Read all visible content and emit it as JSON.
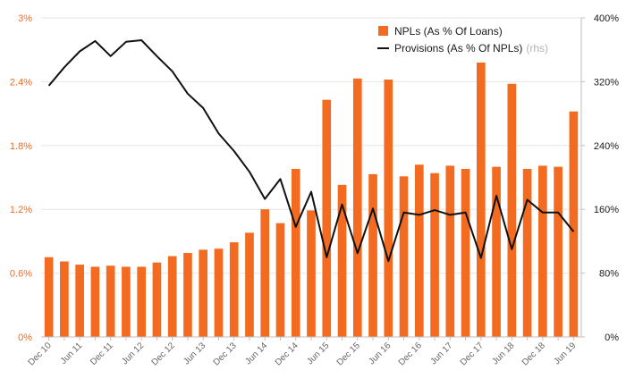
{
  "chart_data": {
    "type": "bar+line",
    "x": [
      "Dec 10",
      "Mar 11",
      "Jun 11",
      "Sep 11",
      "Dec 11",
      "Mar 12",
      "Jun 12",
      "Sep 12",
      "Dec 12",
      "Mar 13",
      "Jun 13",
      "Sep 13",
      "Dec 13",
      "Mar 14",
      "Jun 14",
      "Sep 14",
      "Dec 14",
      "Mar 15",
      "Jun 15",
      "Sep 15",
      "Dec 15",
      "Mar 16",
      "Jun 16",
      "Sep 16",
      "Dec 16",
      "Mar 17",
      "Jun 17",
      "Sep 17",
      "Dec 17",
      "Mar 18",
      "Jun 18",
      "Sep 18",
      "Dec 18",
      "Mar 19",
      "Jun 19"
    ],
    "x_tick_labels": [
      "Dec 10",
      "Jun 11",
      "Dec 11",
      "Jun 12",
      "Dec 12",
      "Jun 13",
      "Dec 13",
      "Jun 14",
      "Dec 14",
      "Jun 15",
      "Dec 15",
      "Jun 16",
      "Dec 16",
      "Jun 17",
      "Dec 17",
      "Jun 18",
      "Dec 18",
      "Jun 19"
    ],
    "series": [
      {
        "name": "NPLs (As % Of Loans)",
        "type": "bar",
        "axis": "left",
        "color": "#f26b21",
        "values": [
          0.75,
          0.71,
          0.68,
          0.66,
          0.67,
          0.66,
          0.66,
          0.7,
          0.76,
          0.79,
          0.82,
          0.83,
          0.89,
          0.98,
          1.2,
          1.07,
          1.58,
          1.19,
          2.23,
          1.43,
          2.43,
          1.53,
          2.42,
          1.51,
          1.62,
          1.54,
          1.61,
          1.58,
          2.58,
          1.6,
          2.38,
          1.58,
          1.61,
          1.6,
          2.12
        ]
      },
      {
        "name": "Provisions (As % Of NPLs)",
        "name_suffix": "(rhs)",
        "type": "line",
        "axis": "right",
        "color": "#111111",
        "values": [
          315,
          338,
          358,
          371,
          352,
          370,
          372,
          352,
          333,
          305,
          287,
          255,
          233,
          207,
          173,
          198,
          138,
          182,
          100,
          166,
          105,
          161,
          95,
          156,
          153,
          159,
          153,
          156,
          99,
          177,
          110,
          172,
          156,
          156,
          132
        ]
      }
    ],
    "y_left": {
      "ticks": [
        "0%",
        "0.6%",
        "1.2%",
        "1.8%",
        "2.4%",
        "3%"
      ],
      "min": 0,
      "max": 3,
      "color": "#f26b21"
    },
    "y_right": {
      "ticks": [
        "0%",
        "80%",
        "160%",
        "240%",
        "320%",
        "400%"
      ],
      "min": 0,
      "max": 400,
      "color": "#1a1a1a"
    },
    "grid": true,
    "legend_position": "top-right"
  }
}
